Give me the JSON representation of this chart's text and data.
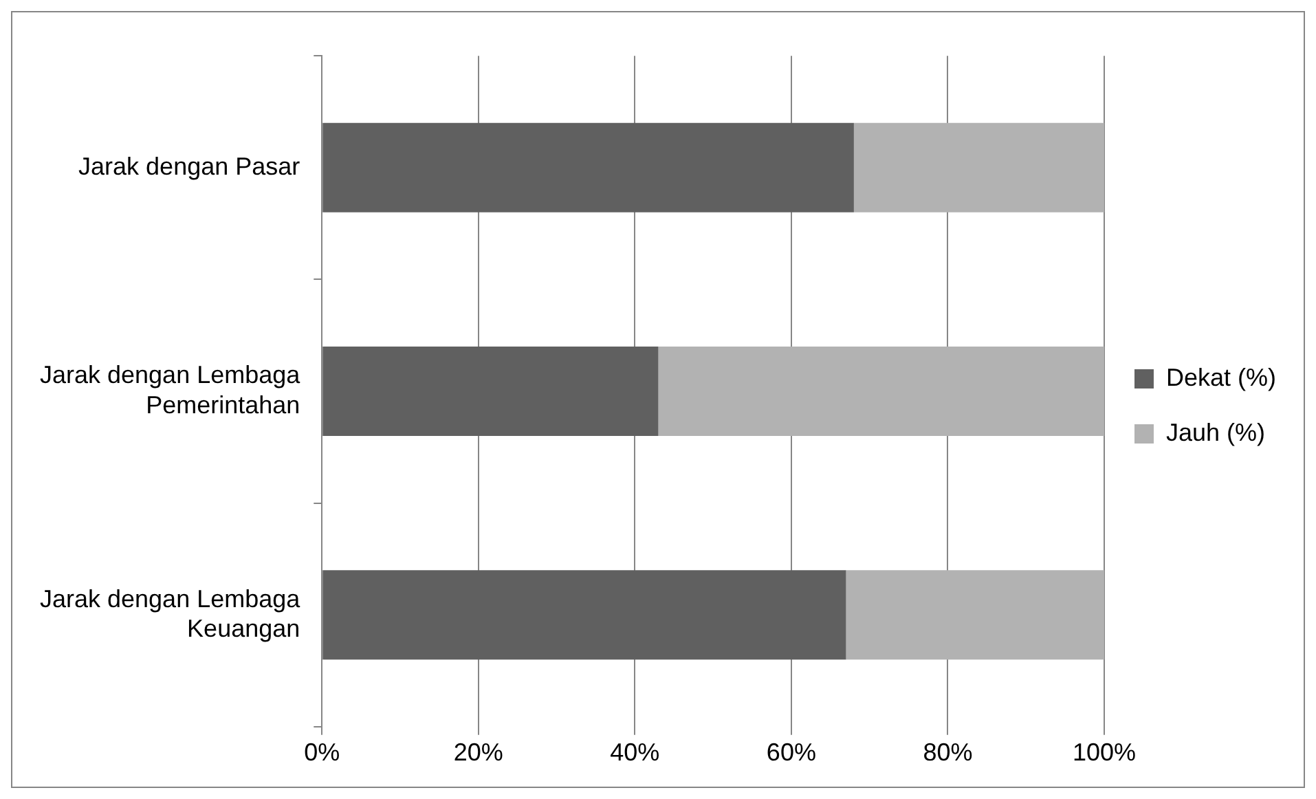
{
  "chart_data": {
    "type": "bar",
    "orientation": "horizontal",
    "stacked": true,
    "categories": [
      "Jarak dengan Pasar",
      "Jarak dengan Lembaga Pemerintahan",
      "Jarak dengan Lembaga Keuangan"
    ],
    "series": [
      {
        "name": "Dekat (%)",
        "color": "#606060",
        "values": [
          68,
          43,
          67
        ]
      },
      {
        "name": "Jauh (%)",
        "color": "#b2b2b2",
        "values": [
          32,
          57,
          33
        ]
      }
    ],
    "xlim": [
      0,
      100
    ],
    "xticks": [
      {
        "value": 0,
        "label": "0%"
      },
      {
        "value": 20,
        "label": "20%"
      },
      {
        "value": 40,
        "label": "40%"
      },
      {
        "value": 60,
        "label": "60%"
      },
      {
        "value": 80,
        "label": "80%"
      },
      {
        "value": 100,
        "label": "100%"
      }
    ],
    "grid": "x",
    "legend": "right"
  }
}
